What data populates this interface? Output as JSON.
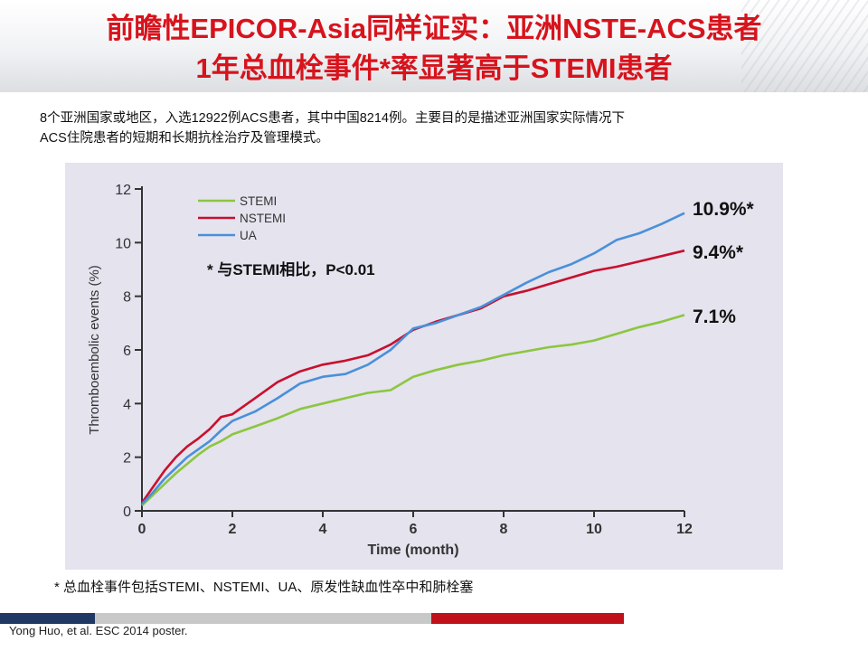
{
  "slide": {
    "title_line1": "前瞻性EPICOR-Asia同样证实：亚洲NSTE-ACS患者",
    "title_line2": "1年总血栓事件*率显著高于STEMI患者",
    "description_line1": "8个亚洲国家或地区，入选12922例ACS患者，其中中国8214例。主要目的是描述亚洲国家实际情况下",
    "description_line2": "ACS住院患者的短期和长期抗栓治疗及管理模式。",
    "footnote": "* 总血栓事件包括STEMI、NSTEMI、UA、原发性缺血性卒中和肺栓塞",
    "citation": "Yong Huo, et al. ESC 2014 poster.",
    "colors": {
      "title": "#d7131c",
      "bar_navy": "#1f3864",
      "bar_gray": "#c8c8c8",
      "bar_red": "#c0101a"
    }
  },
  "chart_data": {
    "type": "line",
    "xlabel": "Time (month)",
    "ylabel": "Thromboembolic events (%)",
    "xlim": [
      0,
      12
    ],
    "ylim": [
      0,
      12
    ],
    "x_ticks": [
      0,
      2,
      4,
      6,
      8,
      10,
      12
    ],
    "y_ticks": [
      0,
      2,
      4,
      6,
      8,
      10,
      12
    ],
    "grid": false,
    "legend_position": "top-left",
    "annotation": "* 与STEMI相比，P<0.01",
    "series": [
      {
        "name": "STEMI",
        "color": "#8cc63f",
        "end_label": "7.1%",
        "x": [
          0,
          0.25,
          0.5,
          0.75,
          1,
          1.25,
          1.5,
          1.75,
          2,
          2.5,
          3,
          3.5,
          4,
          4.5,
          5,
          5.5,
          6,
          6.5,
          7,
          7.5,
          8,
          8.5,
          9,
          9.5,
          10,
          10.5,
          11,
          11.5,
          12
        ],
        "y": [
          0.2,
          0.6,
          1.0,
          1.4,
          1.75,
          2.1,
          2.4,
          2.6,
          2.85,
          3.15,
          3.45,
          3.8,
          4.0,
          4.2,
          4.4,
          4.5,
          5.0,
          5.25,
          5.45,
          5.6,
          5.8,
          5.95,
          6.1,
          6.2,
          6.35,
          6.6,
          6.85,
          7.05,
          7.3
        ]
      },
      {
        "name": "NSTEMI",
        "color": "#c8102e",
        "end_label": "9.4%*",
        "x": [
          0,
          0.25,
          0.5,
          0.75,
          1,
          1.25,
          1.5,
          1.75,
          2,
          2.5,
          3,
          3.5,
          4,
          4.5,
          5,
          5.5,
          6,
          6.5,
          7,
          7.5,
          8,
          8.5,
          9,
          9.5,
          10,
          10.5,
          11,
          11.5,
          12
        ],
        "y": [
          0.3,
          0.9,
          1.5,
          2.0,
          2.4,
          2.7,
          3.05,
          3.5,
          3.6,
          4.2,
          4.8,
          5.2,
          5.45,
          5.6,
          5.8,
          6.2,
          6.75,
          7.05,
          7.3,
          7.55,
          8.0,
          8.2,
          8.45,
          8.7,
          8.95,
          9.1,
          9.3,
          9.5,
          9.7
        ]
      },
      {
        "name": "UA",
        "color": "#4a90d9",
        "end_label": "10.9%*",
        "x": [
          0,
          0.25,
          0.5,
          0.75,
          1,
          1.25,
          1.5,
          1.75,
          2,
          2.5,
          3,
          3.5,
          4,
          4.5,
          5,
          5.5,
          6,
          6.5,
          7,
          7.5,
          8,
          8.5,
          9,
          9.5,
          10,
          10.5,
          11,
          11.5,
          12
        ],
        "y": [
          0.25,
          0.7,
          1.2,
          1.6,
          2.0,
          2.3,
          2.6,
          3.0,
          3.35,
          3.7,
          4.2,
          4.75,
          5.0,
          5.1,
          5.45,
          6.0,
          6.8,
          7.0,
          7.3,
          7.6,
          8.05,
          8.5,
          8.9,
          9.2,
          9.6,
          10.1,
          10.35,
          10.7,
          11.1
        ]
      }
    ]
  }
}
